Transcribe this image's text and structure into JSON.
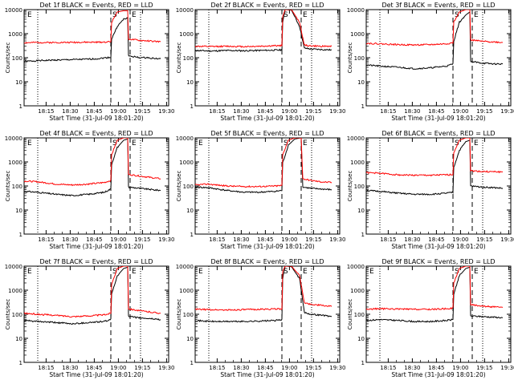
{
  "chart_data": [
    {
      "type": "line",
      "title": "Det 1f BLACK = Events, RED = LLD",
      "ylabel": "Counts/sec",
      "xlabel": "Start Time (31-Jul-09 18:01:20)",
      "x_ticks": [
        "18:15",
        "18:30",
        "18:45",
        "19:00",
        "19:15",
        "19:30"
      ],
      "y_scale": "log",
      "ylim": [
        1,
        10000
      ],
      "y_ticks": [
        "1",
        "10",
        "100",
        "1000",
        "10000"
      ],
      "markers": [
        "E",
        "S",
        "E"
      ],
      "series": [
        {
          "name": "BLACK = Events",
          "color": "#000000",
          "x": [
            0,
            8,
            20,
            35,
            45,
            54,
            54.5,
            58,
            62,
            64.5,
            65,
            72,
            78,
            80,
            85
          ],
          "y": [
            70,
            75,
            80,
            85,
            90,
            105,
            600,
            2000,
            4000,
            4500,
            120,
            100,
            100,
            95,
            90
          ]
        },
        {
          "name": "RED = LLD",
          "color": "#ff0000",
          "x": [
            0,
            8,
            20,
            35,
            45,
            54,
            54.5,
            58,
            62,
            64.5,
            65,
            72,
            78,
            80,
            85
          ],
          "y": [
            420,
            430,
            430,
            440,
            440,
            460,
            3000,
            8000,
            9000,
            9000,
            600,
            520,
            500,
            480,
            460
          ]
        }
      ]
    },
    {
      "type": "line",
      "title": "Det 2f BLACK = Events, RED = LLD",
      "ylabel": "Counts/sec",
      "xlabel": "Start Time (31-Jul-09 18:01:20)",
      "x_ticks": [
        "18:15",
        "18:30",
        "18:45",
        "19:00",
        "19:15",
        "19:30"
      ],
      "y_scale": "log",
      "ylim": [
        1,
        10000
      ],
      "y_ticks": [
        "1",
        "10",
        "100",
        "1000",
        "10000"
      ],
      "markers": [
        "S",
        "E"
      ],
      "series": [
        {
          "name": "BLACK = Events",
          "color": "#000000",
          "x": [
            0,
            10,
            20,
            30,
            40,
            54,
            54.5,
            56,
            60,
            65,
            68,
            72,
            78,
            85
          ],
          "y": [
            200,
            190,
            200,
            195,
            200,
            210,
            3000,
            10000,
            9500,
            2000,
            250,
            230,
            220,
            210
          ]
        },
        {
          "name": "RED = LLD",
          "color": "#ff0000",
          "x": [
            0,
            10,
            20,
            30,
            40,
            54,
            54.5,
            56,
            60,
            65,
            68,
            72,
            78,
            85
          ],
          "y": [
            300,
            290,
            300,
            290,
            300,
            320,
            5000,
            10000,
            10000,
            3000,
            330,
            310,
            300,
            300
          ]
        }
      ]
    },
    {
      "type": "line",
      "title": "Det 3f BLACK = Events, RED = LLD",
      "ylabel": "Counts/sec",
      "xlabel": "Start Time (31-Jul-09 18:01:20)",
      "x_ticks": [
        "18:15",
        "18:30",
        "18:45",
        "19:00",
        "19:15",
        "19:30"
      ],
      "y_scale": "log",
      "ylim": [
        1,
        10000
      ],
      "y_ticks": [
        "1",
        "10",
        "100",
        "1000",
        "10000"
      ],
      "markers": [
        "S",
        "E"
      ],
      "series": [
        {
          "name": "BLACK = Events",
          "color": "#000000",
          "x": [
            0,
            8,
            20,
            30,
            40,
            50,
            54,
            54.5,
            58,
            62,
            64.5,
            65,
            72,
            80,
            85
          ],
          "y": [
            50,
            45,
            40,
            35,
            38,
            45,
            55,
            500,
            3000,
            6000,
            8000,
            70,
            60,
            55,
            55
          ]
        },
        {
          "name": "RED = LLD",
          "color": "#ff0000",
          "x": [
            0,
            8,
            20,
            30,
            40,
            50,
            54,
            54.5,
            58,
            62,
            64.5,
            65,
            72,
            80,
            85
          ],
          "y": [
            400,
            380,
            350,
            340,
            350,
            380,
            420,
            3000,
            8000,
            10000,
            10000,
            550,
            480,
            450,
            430
          ]
        }
      ]
    },
    {
      "type": "line",
      "title": "Det 4f BLACK = Events, RED = LLD",
      "ylabel": "Counts/sec",
      "xlabel": "Start Time (31-Jul-09 18:01:20)",
      "x_ticks": [
        "18:15",
        "18:30",
        "18:45",
        "19:00",
        "19:15",
        "19:30"
      ],
      "y_scale": "log",
      "ylim": [
        1,
        10000
      ],
      "y_ticks": [
        "1",
        "10",
        "100",
        "1000",
        "10000"
      ],
      "markers": [
        "E",
        "S",
        "E"
      ],
      "series": [
        {
          "name": "BLACK = Events",
          "color": "#000000",
          "x": [
            0,
            8,
            20,
            30,
            40,
            50,
            54,
            54.5,
            58,
            62,
            64.5,
            65,
            72,
            80,
            85
          ],
          "y": [
            60,
            55,
            45,
            40,
            45,
            55,
            75,
            800,
            4000,
            8000,
            9000,
            90,
            80,
            70,
            65
          ]
        },
        {
          "name": "RED = LLD",
          "color": "#ff0000",
          "x": [
            0,
            8,
            20,
            30,
            40,
            50,
            54,
            54.5,
            58,
            62,
            64.5,
            65,
            72,
            80,
            85
          ],
          "y": [
            160,
            150,
            120,
            110,
            120,
            140,
            170,
            2000,
            8000,
            10000,
            10000,
            300,
            260,
            220,
            200
          ]
        }
      ]
    },
    {
      "type": "line",
      "title": "Det 5f BLACK = Events, RED = LLD",
      "ylabel": "Counts/sec",
      "xlabel": "Start Time (31-Jul-09 18:01:20)",
      "x_ticks": [
        "18:15",
        "18:30",
        "18:45",
        "19:00",
        "19:15",
        "19:30"
      ],
      "y_scale": "log",
      "ylim": [
        1,
        10000
      ],
      "y_ticks": [
        "1",
        "10",
        "100",
        "1000",
        "10000"
      ],
      "markers": [
        "E",
        "S",
        "E"
      ],
      "series": [
        {
          "name": "BLACK = Events",
          "color": "#000000",
          "x": [
            0,
            8,
            20,
            30,
            40,
            50,
            54,
            54.5,
            58,
            62,
            66,
            67,
            72,
            78,
            85
          ],
          "y": [
            90,
            85,
            65,
            55,
            55,
            60,
            65,
            900,
            5000,
            9000,
            10000,
            90,
            80,
            75,
            70
          ]
        },
        {
          "name": "RED = LLD",
          "color": "#ff0000",
          "x": [
            0,
            8,
            20,
            30,
            40,
            50,
            54,
            54.5,
            58,
            62,
            66,
            67,
            72,
            78,
            85
          ],
          "y": [
            110,
            120,
            100,
            95,
            95,
            100,
            105,
            2000,
            8000,
            10000,
            10000,
            200,
            170,
            150,
            140
          ]
        }
      ]
    },
    {
      "type": "line",
      "title": "Det 6f BLACK = Events, RED = LLD",
      "ylabel": "Counts/sec",
      "xlabel": "Start Time (31-Jul-09 18:01:20)",
      "x_ticks": [
        "18:15",
        "18:30",
        "18:45",
        "19:00",
        "19:15",
        "19:30"
      ],
      "y_scale": "log",
      "ylim": [
        1,
        10000
      ],
      "y_ticks": [
        "1",
        "10",
        "100",
        "1000",
        "10000"
      ],
      "markers": [
        "S",
        "E"
      ],
      "series": [
        {
          "name": "BLACK = Events",
          "color": "#000000",
          "x": [
            0,
            8,
            20,
            30,
            40,
            50,
            54,
            54.5,
            58,
            62,
            64.5,
            65,
            72,
            80,
            85
          ],
          "y": [
            65,
            60,
            50,
            45,
            45,
            50,
            55,
            600,
            3000,
            7000,
            8000,
            100,
            90,
            85,
            80
          ]
        },
        {
          "name": "RED = LLD",
          "color": "#ff0000",
          "x": [
            0,
            8,
            20,
            30,
            40,
            50,
            54,
            54.5,
            58,
            62,
            64.5,
            65,
            72,
            80,
            85
          ],
          "y": [
            360,
            340,
            290,
            280,
            280,
            290,
            300,
            2500,
            8000,
            10000,
            10000,
            430,
            400,
            390,
            380
          ]
        }
      ]
    },
    {
      "type": "line",
      "title": "Det 7f BLACK = Events, RED = LLD",
      "ylabel": "Counts/sec",
      "xlabel": "Start Time (31-Jul-09 18:01:20)",
      "x_ticks": [
        "18:15",
        "18:30",
        "18:45",
        "19:00",
        "19:15",
        "19:30"
      ],
      "y_scale": "log",
      "ylim": [
        1,
        10000
      ],
      "y_ticks": [
        "1",
        "10",
        "100",
        "1000",
        "10000"
      ],
      "markers": [
        "E",
        "S",
        "E"
      ],
      "series": [
        {
          "name": "BLACK = Events",
          "color": "#000000",
          "x": [
            0,
            8,
            20,
            30,
            40,
            50,
            54,
            54.5,
            58,
            62,
            64.5,
            65,
            72,
            80,
            85
          ],
          "y": [
            55,
            50,
            45,
            40,
            45,
            50,
            60,
            700,
            4000,
            8000,
            9000,
            80,
            70,
            65,
            60
          ]
        },
        {
          "name": "RED = LLD",
          "color": "#ff0000",
          "x": [
            0,
            8,
            20,
            30,
            40,
            50,
            54,
            54.5,
            58,
            62,
            64.5,
            65,
            72,
            80,
            85
          ],
          "y": [
            110,
            100,
            90,
            80,
            85,
            95,
            110,
            1800,
            8000,
            10000,
            10000,
            170,
            140,
            120,
            110
          ]
        }
      ]
    },
    {
      "type": "line",
      "title": "Det 8f BLACK = Events, RED = LLD",
      "ylabel": "Counts/sec",
      "xlabel": "Start Time (31-Jul-09 18:01:20)",
      "x_ticks": [
        "18:15",
        "18:30",
        "18:45",
        "19:00",
        "19:15",
        "19:30"
      ],
      "y_scale": "log",
      "ylim": [
        1,
        10000
      ],
      "y_ticks": [
        "1",
        "10",
        "100",
        "1000",
        "10000"
      ],
      "markers": [
        "E",
        "S",
        "E"
      ],
      "series": [
        {
          "name": "BLACK = Events",
          "color": "#000000",
          "x": [
            0,
            10,
            20,
            30,
            40,
            50,
            54,
            54.5,
            56,
            60,
            65,
            68,
            72,
            80,
            85
          ],
          "y": [
            55,
            50,
            50,
            50,
            52,
            55,
            60,
            3000,
            10000,
            9500,
            3000,
            120,
            100,
            90,
            80
          ]
        },
        {
          "name": "RED = LLD",
          "color": "#ff0000",
          "x": [
            0,
            10,
            20,
            30,
            40,
            50,
            54,
            54.5,
            56,
            60,
            65,
            68,
            72,
            80,
            85
          ],
          "y": [
            160,
            155,
            150,
            155,
            160,
            165,
            170,
            6000,
            10000,
            10000,
            4000,
            300,
            260,
            230,
            210
          ]
        }
      ]
    },
    {
      "type": "line",
      "title": "Det 9f BLACK = Events, RED = LLD",
      "ylabel": "Counts/sec",
      "xlabel": "Start Time (31-Jul-09 18:01:20)",
      "x_ticks": [
        "18:15",
        "18:30",
        "18:45",
        "19:00",
        "19:15",
        "19:30"
      ],
      "y_scale": "log",
      "ylim": [
        1,
        10000
      ],
      "y_ticks": [
        "1",
        "10",
        "100",
        "1000",
        "10000"
      ],
      "markers": [
        "E",
        "S",
        "E"
      ],
      "series": [
        {
          "name": "BLACK = Events",
          "color": "#000000",
          "x": [
            0,
            8,
            20,
            30,
            40,
            50,
            54,
            54.5,
            58,
            62,
            64.5,
            65,
            72,
            80,
            85
          ],
          "y": [
            55,
            60,
            55,
            50,
            50,
            55,
            60,
            700,
            4000,
            8000,
            9000,
            85,
            80,
            75,
            72
          ]
        },
        {
          "name": "RED = LLD",
          "color": "#ff0000",
          "x": [
            0,
            8,
            20,
            30,
            40,
            50,
            54,
            54.5,
            58,
            62,
            64.5,
            65,
            72,
            80,
            85
          ],
          "y": [
            160,
            170,
            165,
            160,
            160,
            170,
            180,
            2000,
            8000,
            10000,
            10000,
            250,
            220,
            200,
            190
          ]
        }
      ]
    }
  ]
}
